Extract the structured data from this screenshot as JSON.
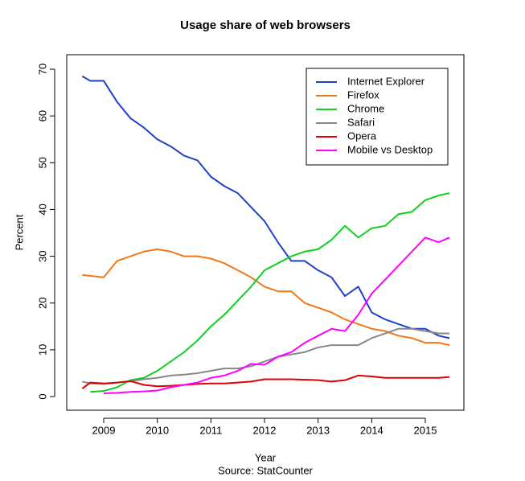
{
  "chart_data": {
    "type": "line",
    "title": "Usage share of web browsers",
    "xlabel": "Year",
    "ylabel": "Percent",
    "caption": "Source: StatCounter",
    "x": [
      2008.6,
      2008.75,
      2009.0,
      2009.25,
      2009.5,
      2009.75,
      2010.0,
      2010.25,
      2010.5,
      2010.75,
      2011.0,
      2011.25,
      2011.5,
      2011.75,
      2012.0,
      2012.25,
      2012.5,
      2012.75,
      2013.0,
      2013.25,
      2013.5,
      2013.75,
      2014.0,
      2014.25,
      2014.5,
      2014.75,
      2015.0,
      2015.25,
      2015.45
    ],
    "series": [
      {
        "name": "Internet Explorer",
        "color": "#2040c8",
        "values": [
          68.5,
          67.5,
          67.5,
          63,
          59.5,
          57.5,
          55,
          53.5,
          51.5,
          50.5,
          47,
          45,
          43.5,
          40.5,
          37.5,
          33,
          29,
          29,
          27,
          25.5,
          21.5,
          23.5,
          18,
          16.5,
          15.5,
          14.5,
          14.5,
          13,
          12.5
        ]
      },
      {
        "name": "Firefox",
        "color": "#f07818",
        "values": [
          26,
          25.8,
          25.5,
          29,
          30,
          31,
          31.5,
          31,
          30,
          30,
          29.5,
          28.5,
          27,
          25.5,
          23.5,
          22.5,
          22.5,
          20,
          19,
          18,
          16.5,
          15.5,
          14.5,
          14,
          13,
          12.5,
          11.5,
          11.5,
          11
        ]
      },
      {
        "name": "Chrome",
        "color": "#10d020",
        "values": [
          null,
          1,
          1.2,
          2,
          3.5,
          4,
          5.5,
          7.5,
          9.5,
          12,
          15,
          17.5,
          20.5,
          23.5,
          27,
          28.5,
          30,
          31,
          31.5,
          33.5,
          36.5,
          34,
          36,
          36.5,
          39,
          39.5,
          42,
          43,
          43.5
        ]
      },
      {
        "name": "Safari",
        "color": "#888888",
        "values": [
          3.2,
          2.8,
          2.7,
          3,
          3.3,
          3.7,
          4,
          4.5,
          4.7,
          5,
          5.5,
          6,
          6,
          6.5,
          7.5,
          8.5,
          9,
          9.5,
          10.5,
          11,
          11,
          11,
          12.5,
          13.5,
          14.5,
          14.5,
          14,
          13.5,
          13.5
        ]
      },
      {
        "name": "Opera",
        "color": "#e00000",
        "values": [
          1.7,
          3,
          2.8,
          3,
          3.3,
          2.5,
          2.2,
          2.3,
          2.5,
          2.7,
          2.8,
          2.8,
          3,
          3.2,
          3.7,
          3.7,
          3.7,
          3.6,
          3.5,
          3.2,
          3.5,
          4.5,
          4.3,
          4,
          4,
          4,
          4,
          4,
          4.2
        ]
      },
      {
        "name": "Mobile vs Desktop",
        "color": "#ff00ff",
        "values": [
          null,
          null,
          0.7,
          0.8,
          1,
          1.1,
          1.3,
          2,
          2.5,
          3,
          4,
          4.5,
          5.5,
          7,
          6.8,
          8.5,
          9.5,
          11.5,
          13,
          14.5,
          14,
          17.5,
          22,
          25,
          28,
          31,
          34,
          33,
          34
        ]
      }
    ],
    "xlim": [
      2008.31,
      2015.72
    ],
    "ylim": [
      -2.92,
      73.1
    ],
    "xticks": [
      2009,
      2010,
      2011,
      2012,
      2013,
      2014,
      2015
    ],
    "yticks": [
      0,
      10,
      20,
      30,
      40,
      50,
      60,
      70
    ],
    "legend": "top-right"
  }
}
